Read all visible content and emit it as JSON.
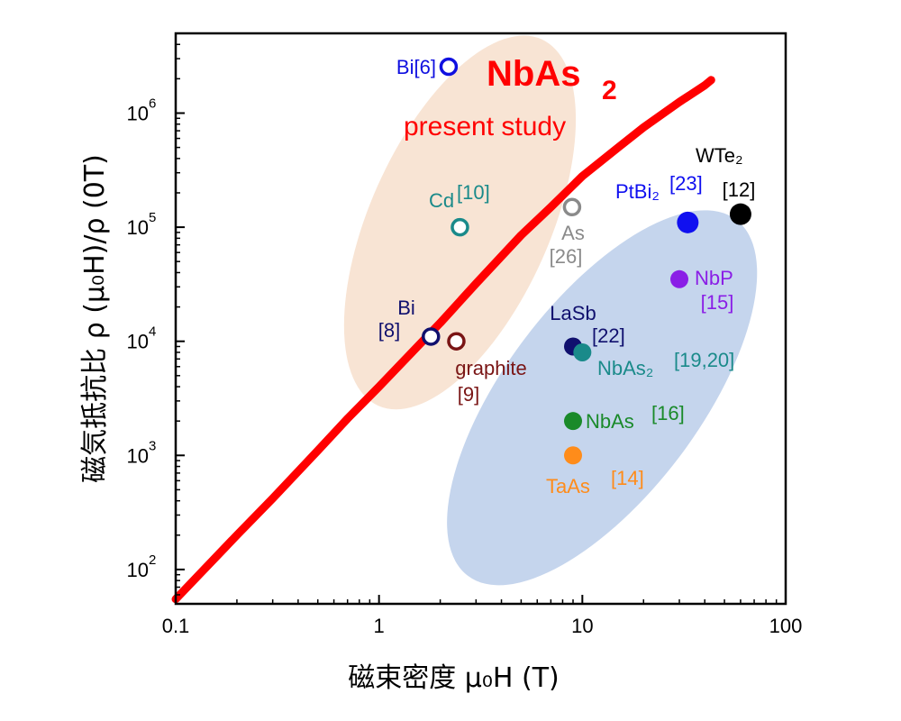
{
  "chart_data": {
    "type": "scatter",
    "xlabel": "磁束密度  μ₀H (T)",
    "ylabel": "磁気抵抗比 ρ (μ₀H)/ρ (0T)",
    "xscale": "log",
    "yscale": "log",
    "xlim": [
      0.1,
      100
    ],
    "ylim": [
      50,
      5000000
    ],
    "x_tick_labels": [
      "0.1",
      "1",
      "10",
      "100"
    ],
    "x_ticks": [
      0.1,
      1,
      10,
      100
    ],
    "y_ticks": [
      100,
      1000,
      10000,
      100000,
      1000000
    ],
    "y_tick_labels": [
      {
        "base": "10",
        "exp": "2"
      },
      {
        "base": "10",
        "exp": "3"
      },
      {
        "base": "10",
        "exp": "4"
      },
      {
        "base": "10",
        "exp": "5"
      },
      {
        "base": "10",
        "exp": "6"
      }
    ],
    "grid": false,
    "main_series": {
      "name": "NbAs₂",
      "label_main": "NbAs",
      "label_sub": "2",
      "note": "present study",
      "color": "#ff0000",
      "x": [
        0.1,
        0.2,
        0.3,
        0.5,
        0.7,
        1.0,
        1.5,
        2,
        3,
        5,
        7,
        10,
        15,
        20,
        30,
        40,
        43
      ],
      "y": [
        55,
        200,
        420,
        1100,
        2100,
        4000,
        8500,
        14500,
        32000,
        85000,
        150000,
        280000,
        500000,
        750000,
        1250000,
        1750000,
        1950000
      ]
    },
    "regions": [
      {
        "name": "present-study-region",
        "color": "#f8e4d4",
        "center": [
          2.5,
          110000
        ],
        "x_range": [
          1.0,
          6.5
        ],
        "y_range": [
          2500,
          4000000
        ],
        "angle_deg": -66
      },
      {
        "name": "other-materials-region",
        "color": "#c5d5ed",
        "center": [
          12.5,
          3200
        ],
        "x_range": [
          3.8,
          70
        ],
        "y_range": [
          90,
          140000
        ],
        "angle_deg": -53
      }
    ],
    "points": [
      {
        "name": "Bi",
        "ref": "[6]",
        "x": 2.2,
        "y": 2550000,
        "color": "#1010e0",
        "filled": false,
        "size": 10
      },
      {
        "name": "Cd",
        "ref": "[10]",
        "x": 2.5,
        "y": 100000,
        "color": "#1a8a8a",
        "filled": false,
        "size": 10
      },
      {
        "name": "Bi",
        "ref": "[8]",
        "x": 1.8,
        "y": 11000,
        "color": "#10106e",
        "filled": false,
        "size": 10
      },
      {
        "name": "graphite",
        "ref": "[9]",
        "x": 2.4,
        "y": 10000,
        "color": "#7a1515",
        "filled": false,
        "size": 10
      },
      {
        "name": "As",
        "ref": "[26]",
        "x": 8.9,
        "y": 150000,
        "color": "#8a8a8a",
        "filled": false,
        "size": 10
      },
      {
        "name": "PtBi₂",
        "ref": "[23]",
        "x": 33,
        "y": 110000,
        "color": "#1010f0",
        "filled": true,
        "size": 12
      },
      {
        "name": "WTe₂",
        "ref": "[12]",
        "x": 60,
        "y": 130000,
        "color": "#000000",
        "filled": true,
        "size": 12
      },
      {
        "name": "NbP",
        "ref": "[15]",
        "x": 30,
        "y": 35000,
        "color": "#8a1ee6",
        "filled": true,
        "size": 10
      },
      {
        "name": "LaSb",
        "ref": "[22]",
        "x": 9,
        "y": 9000,
        "color": "#10106e",
        "filled": true,
        "size": 10
      },
      {
        "name": "NbAs₂",
        "ref": "[19,20]",
        "x": 10,
        "y": 8000,
        "color": "#1a8a8a",
        "filled": true,
        "size": 10
      },
      {
        "name": "NbAs",
        "ref": "[16]",
        "x": 9,
        "y": 2000,
        "color": "#1a8a2a",
        "filled": true,
        "size": 10
      },
      {
        "name": "TaAs",
        "ref": "[14]",
        "x": 9,
        "y": 1000,
        "color": "#ff8c1a",
        "filled": true,
        "size": 10
      }
    ]
  }
}
